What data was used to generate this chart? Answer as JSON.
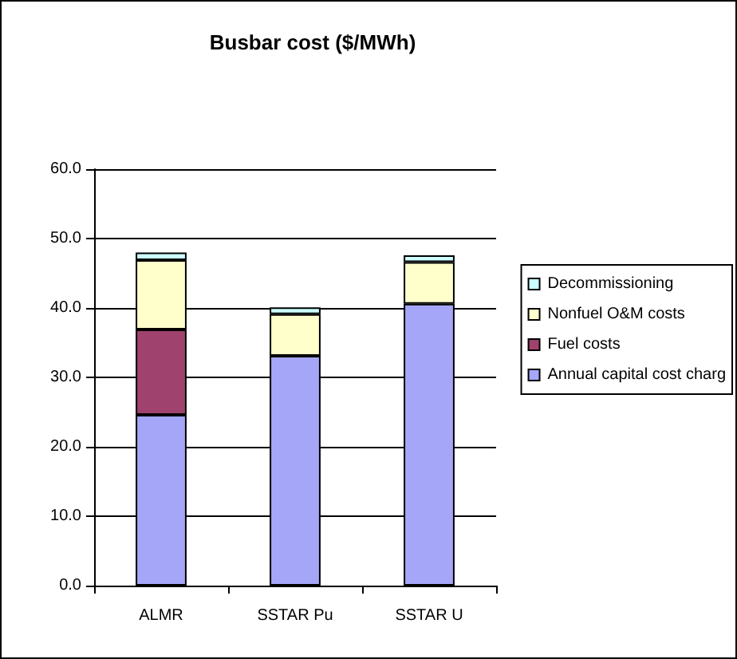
{
  "chart_data": {
    "type": "bar",
    "title": "Busbar cost ($/MWh)",
    "categories": [
      "ALMR",
      "SSTAR Pu",
      "SSTAR U"
    ],
    "stacked": true,
    "series": [
      {
        "name": "Annual capital cost charg",
        "color": "#a6a6f8",
        "values": [
          24.6,
          33.1,
          40.6
        ]
      },
      {
        "name": "Fuel costs",
        "color": "#a0426e",
        "values": [
          12.3,
          null,
          null
        ]
      },
      {
        "name": "Nonfuel O&M costs",
        "color": "#ffffcc",
        "values": [
          10.0,
          6.0,
          6.0
        ]
      },
      {
        "name": "Decommissioning",
        "color": "#ccffff",
        "values": [
          1.1,
          1.0,
          1.0
        ]
      }
    ],
    "ylim": [
      0,
      60
    ],
    "yticks": [
      {
        "value": 0,
        "label": "0.0"
      },
      {
        "value": 10,
        "label": "10.0"
      },
      {
        "value": 20,
        "label": "20.0"
      },
      {
        "value": 30,
        "label": "30.0"
      },
      {
        "value": 40,
        "label": "40.0"
      },
      {
        "value": 50,
        "label": "50.0"
      },
      {
        "value": 60,
        "label": "60.0"
      }
    ],
    "grid": "y",
    "legend": "right"
  }
}
